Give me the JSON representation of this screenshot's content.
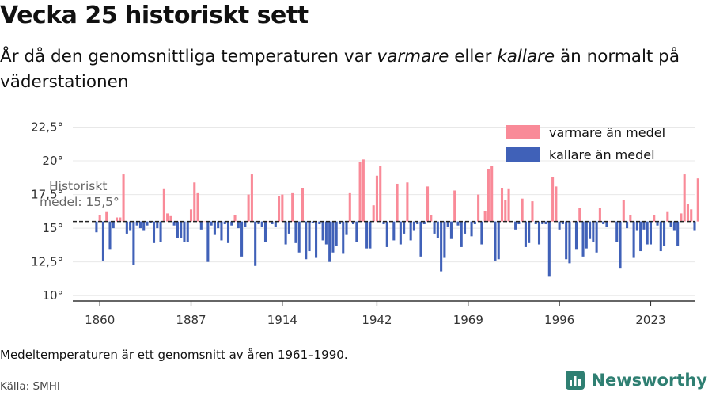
{
  "title": "Vecka 25 historiskt sett",
  "subtitle": {
    "part1": "År då den genomsnittliga temperaturen var ",
    "warm_word": "varmare",
    "part2": " eller ",
    "cold_word": "kallare",
    "part3": " än normalt på väderstationen"
  },
  "note": "Medeltemperaturen är ett genomsnitt av åren 1961–1990.",
  "source": "Källa: SMHI",
  "brand": {
    "name": "Newsworthy",
    "icon": "bar-chart-icon"
  },
  "colors": {
    "warm": "#f98a98",
    "cold": "#4061b8",
    "baseline": "#222222",
    "axis": "#333333"
  },
  "chart_data": {
    "type": "bar",
    "baseline_label_line1": "Historiskt",
    "baseline_label_line2": "medel: 15,5°",
    "baseline": 15.5,
    "ylim": [
      9.6,
      23.0
    ],
    "xlim": [
      1852,
      2036
    ],
    "y_ticks": [
      {
        "value": 10,
        "label": "10°"
      },
      {
        "value": 12.5,
        "label": "12,5°"
      },
      {
        "value": 15,
        "label": "15°"
      },
      {
        "value": 17.5,
        "label": "17,5°"
      },
      {
        "value": 20,
        "label": "20°"
      },
      {
        "value": 22.5,
        "label": "22,5°"
      }
    ],
    "x_ticks": [
      {
        "value": 1860,
        "label": "1860"
      },
      {
        "value": 1887,
        "label": "1887"
      },
      {
        "value": 1914,
        "label": "1914"
      },
      {
        "value": 1942,
        "label": "1942"
      },
      {
        "value": 1969,
        "label": "1969"
      },
      {
        "value": 1996,
        "label": "1996"
      },
      {
        "value": 2023,
        "label": "2023"
      }
    ],
    "legend": [
      {
        "label": "varmare än medel",
        "color": "#f98a98",
        "position": "top-right"
      },
      {
        "label": "kallare än medel",
        "color": "#4061b8",
        "position": "top-right"
      }
    ],
    "grid": true,
    "start_year": 1859,
    "values": [
      14.7,
      16.0,
      12.6,
      16.2,
      13.4,
      15.0,
      15.8,
      15.8,
      19.0,
      14.6,
      14.8,
      12.3,
      15.2,
      15.0,
      14.8,
      15.2,
      15.4,
      13.9,
      15.0,
      14.0,
      17.9,
      16.1,
      15.9,
      15.2,
      14.3,
      14.3,
      14.0,
      14.0,
      16.4,
      18.4,
      17.6,
      14.9,
      15.5,
      12.5,
      15.2,
      14.5,
      15.0,
      14.1,
      15.3,
      13.9,
      15.2,
      16.0,
      15.0,
      12.9,
      15.1,
      17.5,
      19.0,
      12.2,
      15.3,
      15.1,
      14.0,
      15.5,
      15.3,
      15.1,
      17.4,
      17.5,
      13.8,
      14.6,
      17.6,
      13.9,
      13.2,
      18.0,
      12.7,
      13.3,
      15.4,
      12.8,
      15.3,
      14.1,
      13.8,
      12.5,
      13.2,
      13.7,
      15.3,
      13.1,
      14.5,
      17.6,
      15.3,
      14.0,
      19.9,
      20.1,
      13.5,
      13.5,
      16.7,
      18.9,
      19.6,
      15.3,
      13.6,
      15.5,
      14.1,
      18.3,
      13.8,
      14.6,
      18.4,
      14.1,
      14.8,
      15.3,
      12.9,
      15.3,
      18.1,
      16.0,
      14.6,
      14.3,
      11.8,
      12.8,
      15.1,
      14.2,
      17.8,
      15.2,
      13.6,
      14.6,
      15.5,
      14.4,
      15.3,
      17.5,
      13.8,
      16.3,
      19.4,
      19.6,
      12.6,
      12.7,
      18.0,
      17.1,
      17.9,
      15.5,
      14.9,
      15.3,
      17.2,
      13.6,
      13.9,
      17.0,
      15.3,
      13.8,
      15.3,
      15.3,
      11.4,
      18.8,
      18.1,
      14.9,
      15.3,
      12.7,
      12.4,
      15.5,
      13.4,
      16.5,
      12.9,
      13.5,
      14.2,
      14.0,
      13.2,
      16.5,
      15.3,
      15.1,
      15.5,
      15.5,
      14.0,
      12.0,
      17.1,
      15.0,
      16.0,
      12.8,
      14.8,
      13.3,
      14.9,
      13.8,
      13.8,
      16.0,
      15.2,
      13.3,
      13.7,
      16.2,
      15.1,
      14.8,
      13.7,
      16.1,
      19.0,
      16.8,
      16.4,
      14.8,
      18.7
    ]
  }
}
